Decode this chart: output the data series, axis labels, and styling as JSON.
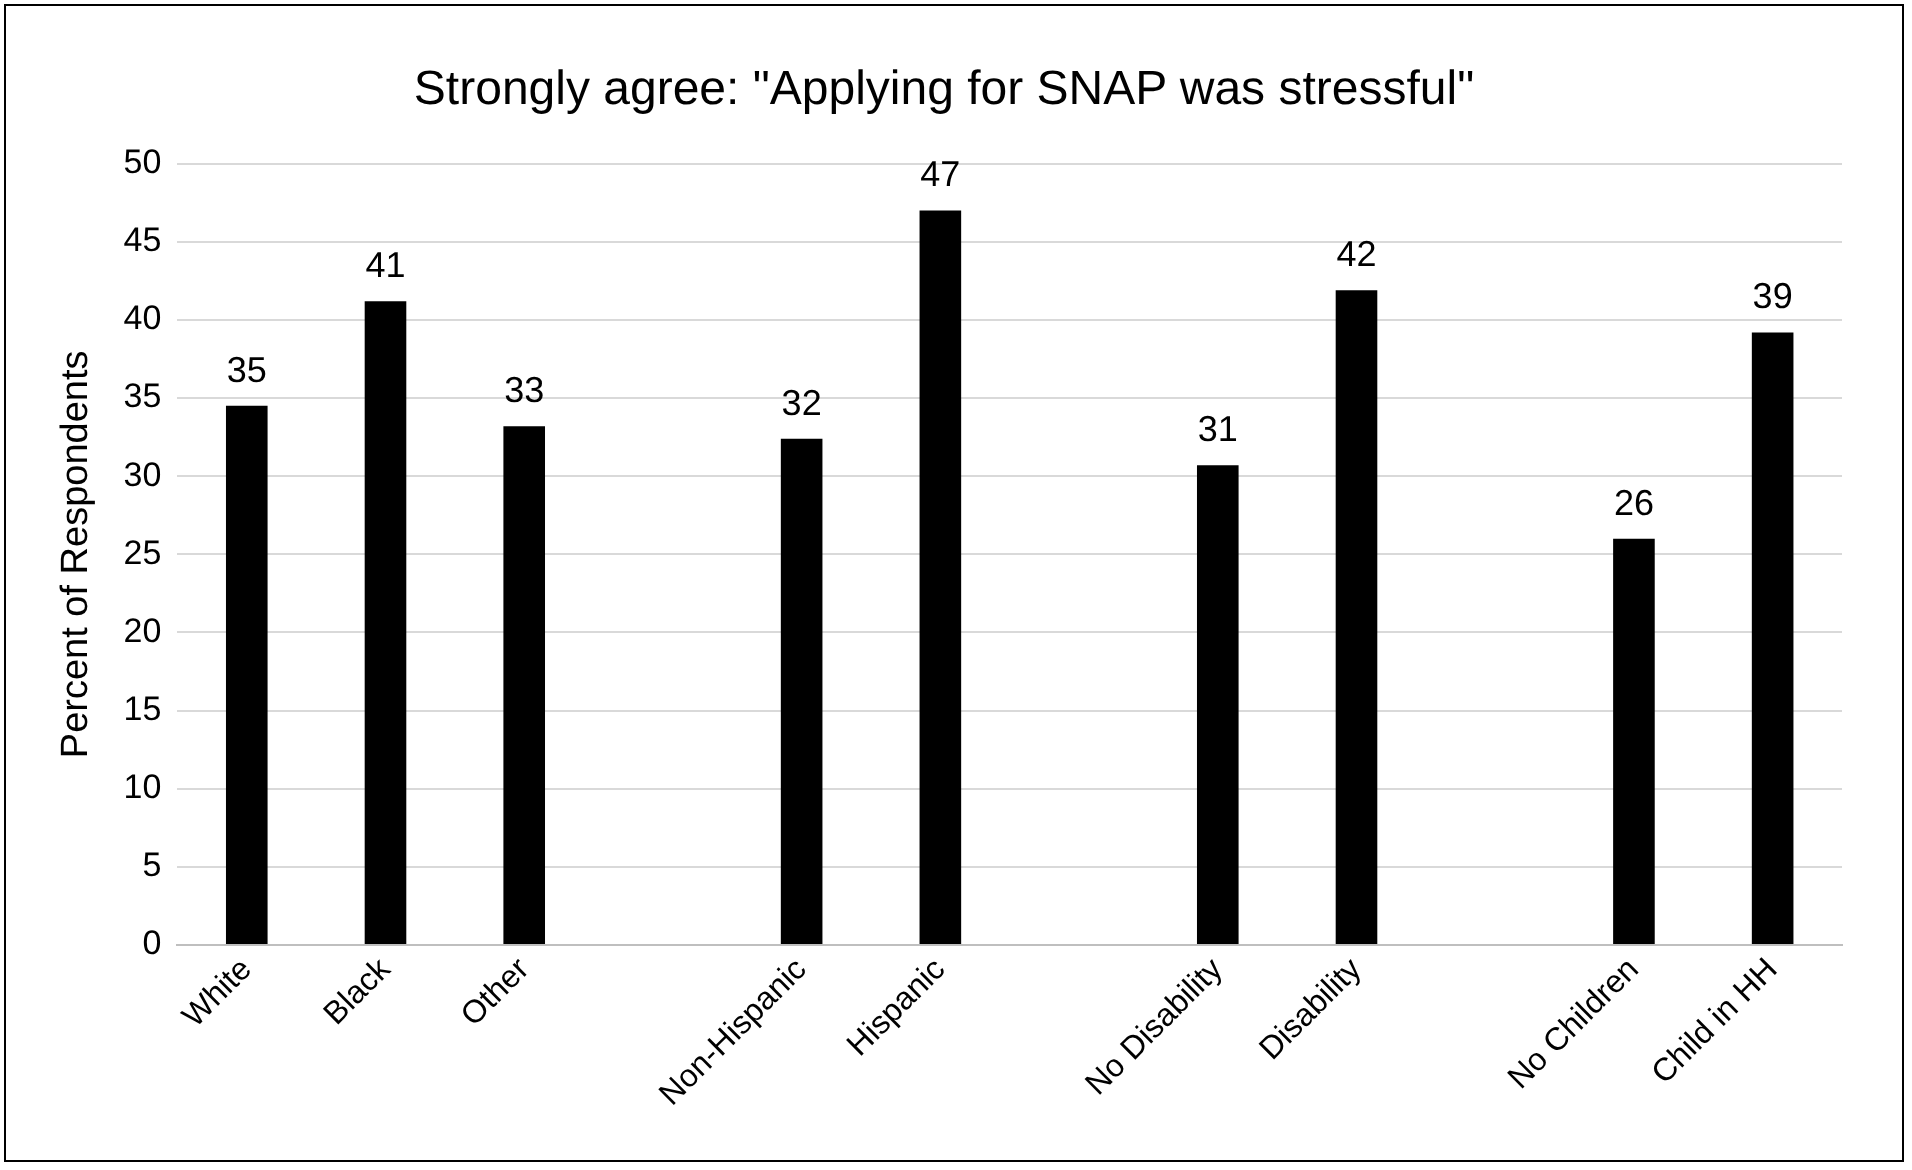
{
  "chart_data": {
    "type": "bar",
    "title": "Strongly agree: \"Applying for SNAP was stressful\"",
    "ylabel": "Percent of Respondents",
    "categories": [
      "White",
      "Black",
      "Other",
      null,
      "Non-Hispanic",
      "Hispanic",
      null,
      "No Disability",
      "Disability",
      null,
      "No Children",
      "Child in HH"
    ],
    "values": [
      34.5,
      41.2,
      33.2,
      null,
      32.4,
      47,
      null,
      30.7,
      41.9,
      null,
      26,
      39.2
    ],
    "value_labels": [
      "35",
      "41",
      "33",
      null,
      "32",
      "47",
      null,
      "31",
      "42",
      null,
      "26",
      "39"
    ],
    "color": "#000000",
    "ylim": [
      0,
      50
    ],
    "yticks": [
      0,
      5,
      10,
      15,
      20,
      25,
      30,
      35,
      40,
      45,
      50
    ],
    "grid": "y",
    "legend": false
  }
}
